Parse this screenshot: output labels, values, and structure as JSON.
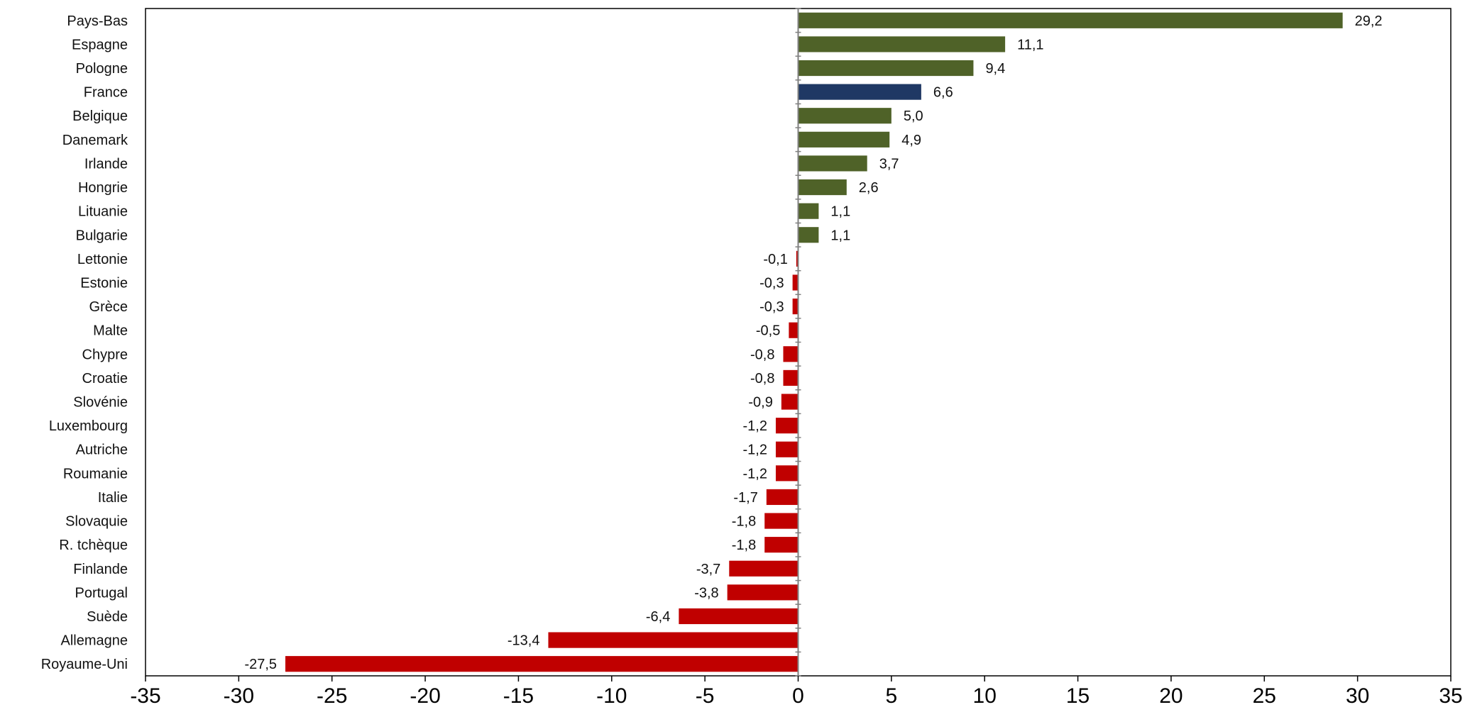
{
  "chart_data": {
    "type": "bar",
    "orientation": "horizontal",
    "title": "",
    "xlabel": "",
    "ylabel": "",
    "xlim": [
      -35,
      35
    ],
    "xticks": [
      -35,
      -30,
      -25,
      -20,
      -15,
      -10,
      -5,
      0,
      5,
      10,
      15,
      20,
      25,
      30,
      35
    ],
    "grid": false,
    "legend": "none",
    "decimal_separator": ",",
    "colors": {
      "positive": "#4f6228",
      "highlight": "#1f3864",
      "negative": "#c00000"
    },
    "highlight_category": "France",
    "categories": [
      "Pays-Bas",
      "Espagne",
      "Pologne",
      "France",
      "Belgique",
      "Danemark",
      "Irlande",
      "Hongrie",
      "Lituanie",
      "Bulgarie",
      "Lettonie",
      "Estonie",
      "Grèce",
      "Malte",
      "Chypre",
      "Croatie",
      "Slovénie",
      "Luxembourg",
      "Autriche",
      "Roumanie",
      "Italie",
      "Slovaquie",
      "R. tchèque",
      "Finlande",
      "Portugal",
      "Suède",
      "Allemagne",
      "Royaume-Uni"
    ],
    "values": [
      29.2,
      11.1,
      9.4,
      6.6,
      5.0,
      4.9,
      3.7,
      2.6,
      1.1,
      1.1,
      -0.1,
      -0.3,
      -0.3,
      -0.5,
      -0.8,
      -0.8,
      -0.9,
      -1.2,
      -1.2,
      -1.2,
      -1.7,
      -1.8,
      -1.8,
      -3.7,
      -3.8,
      -6.4,
      -13.4,
      -27.5
    ]
  }
}
